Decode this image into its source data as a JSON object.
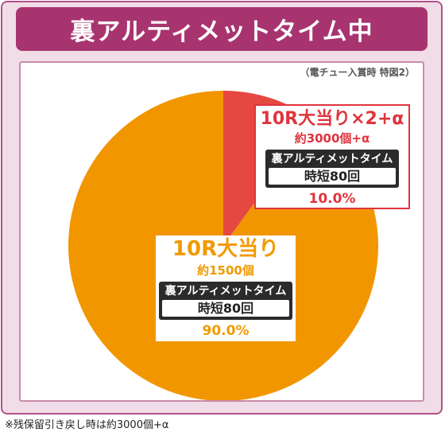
{
  "header": {
    "title": "裏アルティメットタイム中"
  },
  "colors": {
    "frame_border": "#b2518a",
    "title_bg": "#a8346f",
    "slice_small": "#e54841",
    "slice_big": "#f29600"
  },
  "chart_data": {
    "type": "pie",
    "title": "裏アルティメットタイム中",
    "subtitle": "（電チュー入賞時 特図2）",
    "slices": [
      {
        "label": "10R大当り×2+α",
        "sub": "約3000個+α",
        "mode_title": "裏アルティメットタイム",
        "mode_value": "時短80回",
        "value": 10.0,
        "percent_text": "10.0%",
        "color": "#e54841"
      },
      {
        "label": "10R大当り",
        "sub": "約1500個",
        "mode_title": "裏アルティメットタイム",
        "mode_value": "時短80回",
        "value": 90.0,
        "percent_text": "90.0%",
        "color": "#f29600"
      }
    ]
  },
  "footnote": "※残保留引き戻し時は約3000個+α"
}
